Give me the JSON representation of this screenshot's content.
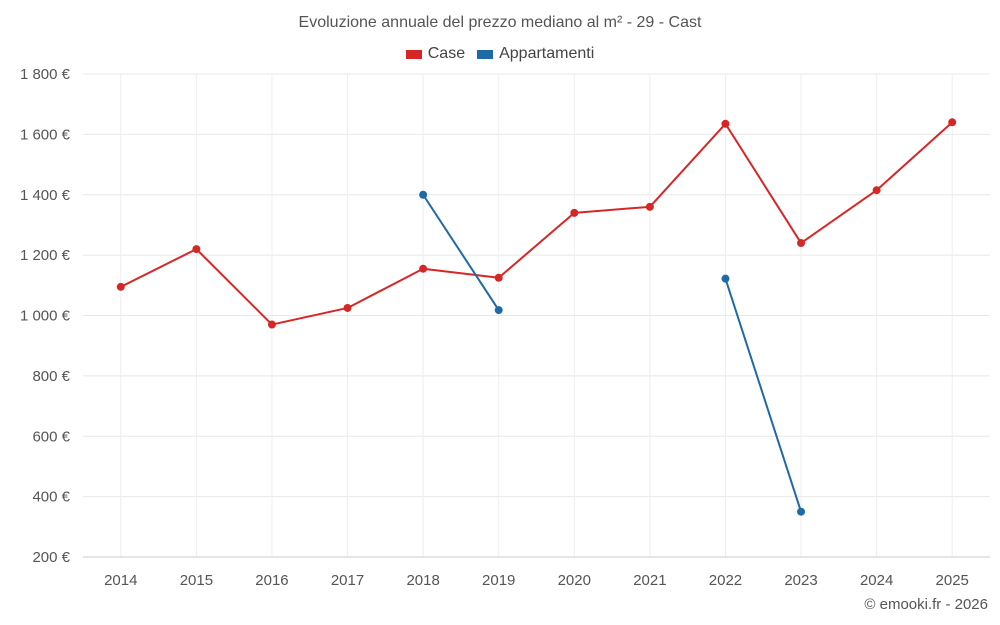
{
  "chart_data": {
    "type": "line",
    "title": "Evoluzione annuale del prezzo mediano al m² - 29 - Cast",
    "categories": [
      "2014",
      "2015",
      "2016",
      "2017",
      "2018",
      "2019",
      "2020",
      "2021",
      "2022",
      "2023",
      "2024",
      "2025"
    ],
    "series": [
      {
        "name": "Case",
        "color": "#d62728",
        "values": [
          1095,
          1220,
          970,
          1025,
          1155,
          1125,
          1340,
          1360,
          1635,
          1240,
          1415,
          1640
        ]
      },
      {
        "name": "Appartamenti",
        "color": "#1f6aa5",
        "values": [
          null,
          null,
          null,
          null,
          1400,
          1018,
          null,
          null,
          1122,
          350,
          null,
          null
        ]
      }
    ],
    "ylim": [
      200,
      1800
    ],
    "yticks": [
      200,
      400,
      600,
      800,
      1000,
      1200,
      1400,
      1600,
      1800
    ],
    "ytick_labels": [
      "200 €",
      "400 €",
      "600 €",
      "800 €",
      "1 000 €",
      "1 200 €",
      "1 400 €",
      "1 600 €",
      "1 800 €"
    ],
    "grid": true,
    "legend_position": "top-center"
  },
  "credit": "© emooki.fr - 2026"
}
